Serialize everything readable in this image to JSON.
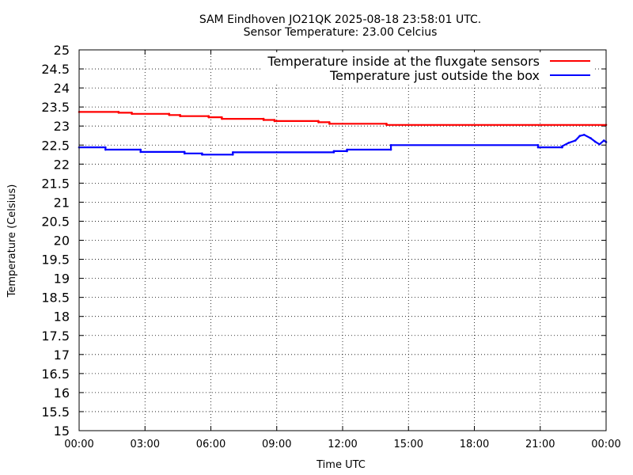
{
  "chart_data": {
    "type": "line",
    "title": "SAM Eindhoven JO21QK 2025-08-18 23:58:01 UTC.",
    "subtitle": "Sensor Temperature: 23.00 Celcius",
    "xlabel": "Time UTC",
    "ylabel": "Temperature (Celsius)",
    "xlim": [
      0,
      24
    ],
    "ylim": [
      15,
      25
    ],
    "grid": true,
    "legend_position": "top-right",
    "x_ticks": [
      "00:00",
      "03:00",
      "06:00",
      "09:00",
      "12:00",
      "15:00",
      "18:00",
      "21:00",
      "00:00"
    ],
    "y_ticks": [
      "25",
      "24.5",
      "24",
      "23.5",
      "23",
      "22.5",
      "22",
      "21.5",
      "21",
      "20.5",
      "20",
      "19.5",
      "19",
      "18.5",
      "18",
      "17.5",
      "17",
      "16.5",
      "16",
      "15.5",
      "15"
    ],
    "series": [
      {
        "name": "Temperature inside at the fluxgate sensors",
        "color": "#ff0000",
        "x": [
          0.0,
          1.8,
          1.8,
          2.4,
          2.4,
          4.1,
          4.1,
          4.6,
          4.6,
          5.9,
          5.9,
          6.5,
          6.5,
          8.4,
          8.4,
          8.9,
          8.9,
          10.9,
          10.9,
          11.4,
          11.4,
          14.0,
          14.0,
          24.0
        ],
        "y": [
          23.37,
          23.37,
          23.35,
          23.35,
          23.32,
          23.32,
          23.29,
          23.29,
          23.26,
          23.26,
          23.23,
          23.23,
          23.19,
          23.19,
          23.16,
          23.16,
          23.13,
          23.13,
          23.1,
          23.1,
          23.06,
          23.06,
          23.03,
          23.03
        ]
      },
      {
        "name": "Temperature just outside the box",
        "color": "#0000ff",
        "x": [
          0.0,
          1.2,
          1.2,
          2.8,
          2.8,
          4.8,
          4.8,
          5.6,
          5.6,
          7.0,
          7.0,
          11.6,
          11.6,
          12.2,
          12.2,
          14.2,
          14.2,
          20.9,
          20.9,
          22.0,
          22.0,
          22.3,
          22.6,
          22.8,
          23.0,
          23.3,
          23.5,
          23.7,
          23.9,
          24.0
        ],
        "y": [
          22.44,
          22.44,
          22.38,
          22.38,
          22.32,
          22.32,
          22.28,
          22.28,
          22.25,
          22.25,
          22.31,
          22.31,
          22.34,
          22.34,
          22.38,
          22.38,
          22.5,
          22.5,
          22.44,
          22.44,
          22.47,
          22.56,
          22.62,
          22.74,
          22.77,
          22.68,
          22.59,
          22.52,
          22.62,
          22.58
        ]
      }
    ]
  }
}
